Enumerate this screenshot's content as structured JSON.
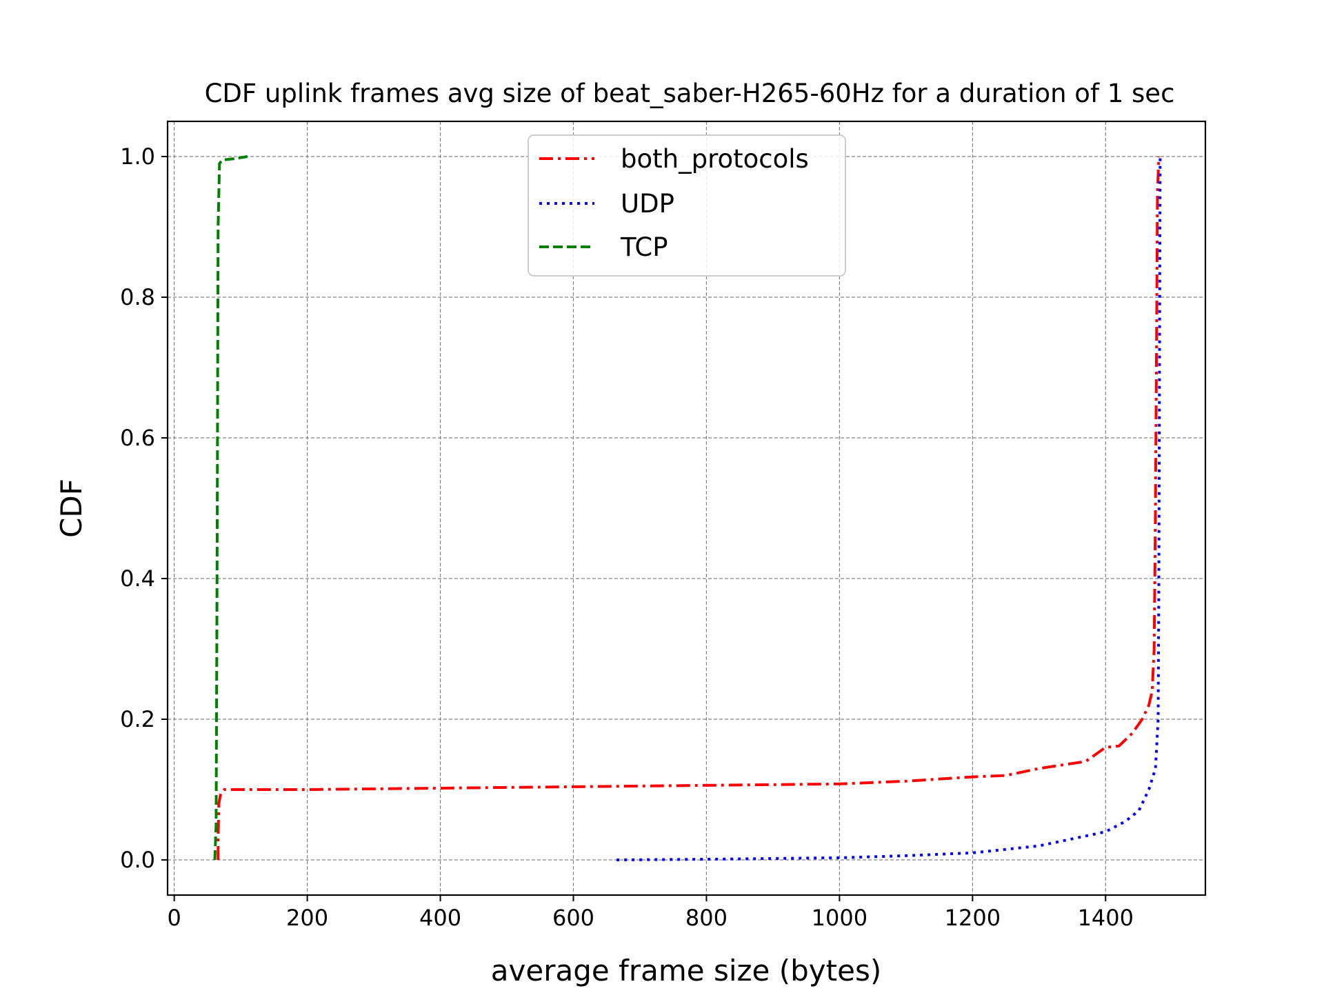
{
  "chart_data": {
    "type": "line",
    "title": "CDF uplink frames avg size of beat_saber-H265-60Hz for a duration of 1 sec",
    "xlabel": "average frame size (bytes)",
    "ylabel": "CDF",
    "xlim": [
      -10,
      1550
    ],
    "ylim": [
      -0.05,
      1.05
    ],
    "xticks": [
      0,
      200,
      400,
      600,
      800,
      1000,
      1200,
      1400
    ],
    "yticks": [
      0.0,
      0.2,
      0.4,
      0.6,
      0.8,
      1.0
    ],
    "xtick_labels": [
      "0",
      "200",
      "400",
      "600",
      "800",
      "1000",
      "1200",
      "1400"
    ],
    "ytick_labels": [
      "0.0",
      "0.2",
      "0.4",
      "0.6",
      "0.8",
      "1.0"
    ],
    "grid": true,
    "legend_position": "top-center",
    "series": [
      {
        "name": "both_protocols",
        "color": "#ff0000",
        "style": "dashdot",
        "points": [
          [
            66,
            0.0
          ],
          [
            66,
            0.03
          ],
          [
            67,
            0.08
          ],
          [
            70,
            0.095
          ],
          [
            75,
            0.1
          ],
          [
            200,
            0.1
          ],
          [
            600,
            0.104
          ],
          [
            1000,
            0.108
          ],
          [
            1100,
            0.112
          ],
          [
            1200,
            0.118
          ],
          [
            1250,
            0.12
          ],
          [
            1300,
            0.13
          ],
          [
            1370,
            0.14
          ],
          [
            1400,
            0.16
          ],
          [
            1420,
            0.162
          ],
          [
            1440,
            0.18
          ],
          [
            1455,
            0.2
          ],
          [
            1465,
            0.22
          ],
          [
            1470,
            0.24
          ],
          [
            1473,
            0.3
          ],
          [
            1475,
            0.5
          ],
          [
            1477,
            0.8
          ],
          [
            1478,
            0.95
          ],
          [
            1480,
            1.0
          ]
        ]
      },
      {
        "name": "UDP",
        "color": "#0000ff",
        "style": "dotted",
        "points": [
          [
            665,
            0.0
          ],
          [
            800,
            0.001
          ],
          [
            1000,
            0.003
          ],
          [
            1100,
            0.006
          ],
          [
            1200,
            0.01
          ],
          [
            1250,
            0.015
          ],
          [
            1300,
            0.02
          ],
          [
            1350,
            0.03
          ],
          [
            1400,
            0.04
          ],
          [
            1430,
            0.055
          ],
          [
            1450,
            0.07
          ],
          [
            1465,
            0.1
          ],
          [
            1475,
            0.13
          ],
          [
            1479,
            0.2
          ],
          [
            1480,
            0.4
          ],
          [
            1481,
            0.7
          ],
          [
            1482,
            1.0
          ]
        ]
      },
      {
        "name": "TCP",
        "color": "#008000",
        "style": "dashed",
        "points": [
          [
            61,
            0.0
          ],
          [
            63,
            0.05
          ],
          [
            64,
            0.3
          ],
          [
            65,
            0.6
          ],
          [
            66,
            0.9
          ],
          [
            68,
            0.99
          ],
          [
            72,
            0.995
          ],
          [
            90,
            0.997
          ],
          [
            110,
            1.0
          ]
        ]
      }
    ]
  }
}
